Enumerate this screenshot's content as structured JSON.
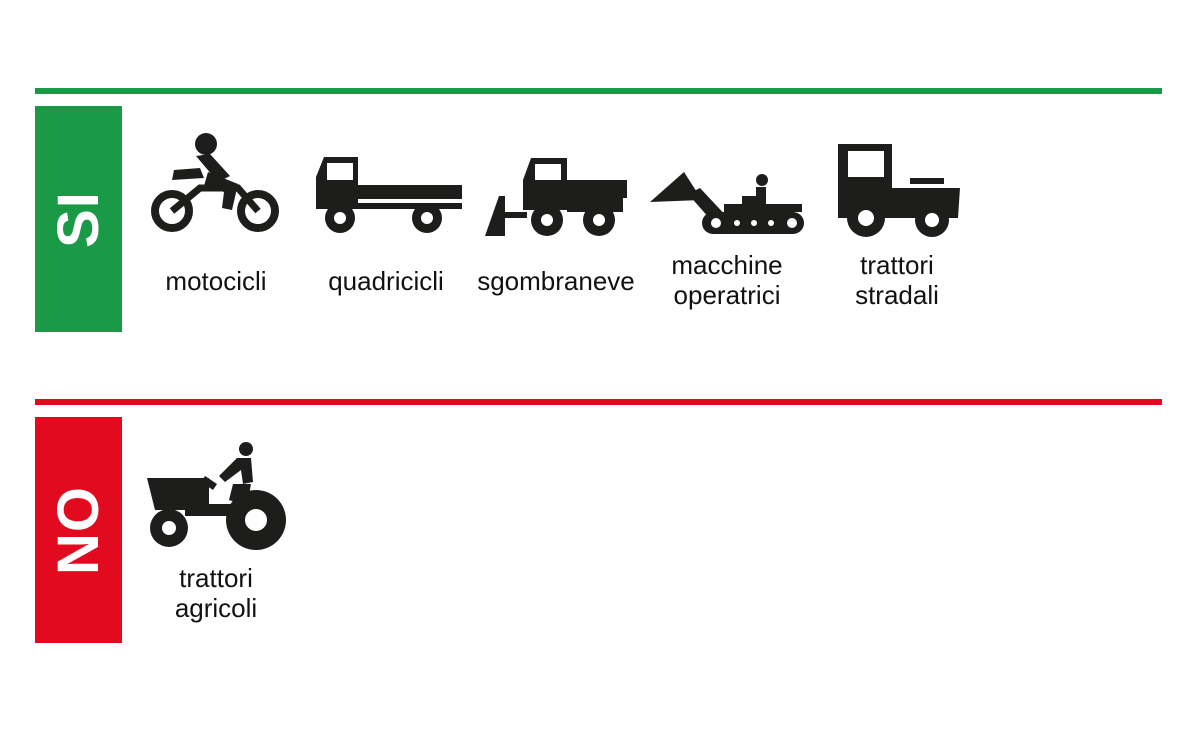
{
  "colors": {
    "accent_si": "#1a9a47",
    "accent_no": "#e10a1e",
    "icon": "#1d1d1b"
  },
  "allowed": {
    "tag": "SI",
    "items": [
      {
        "icon": "motorcycle-icon",
        "label": "motocicli"
      },
      {
        "icon": "quadricycle-truck-icon",
        "label": "quadricicli"
      },
      {
        "icon": "snowplow-icon",
        "label": "sgombraneve"
      },
      {
        "icon": "bulldozer-icon",
        "label_line1": "macchine",
        "label_line2": "operatrici"
      },
      {
        "icon": "road-tractor-icon",
        "label_line1": "trattori",
        "label_line2": "stradali"
      }
    ]
  },
  "not_allowed": {
    "tag": "NO",
    "items": [
      {
        "icon": "farm-tractor-icon",
        "label_line1": "trattori",
        "label_line2": "agricoli"
      }
    ]
  }
}
